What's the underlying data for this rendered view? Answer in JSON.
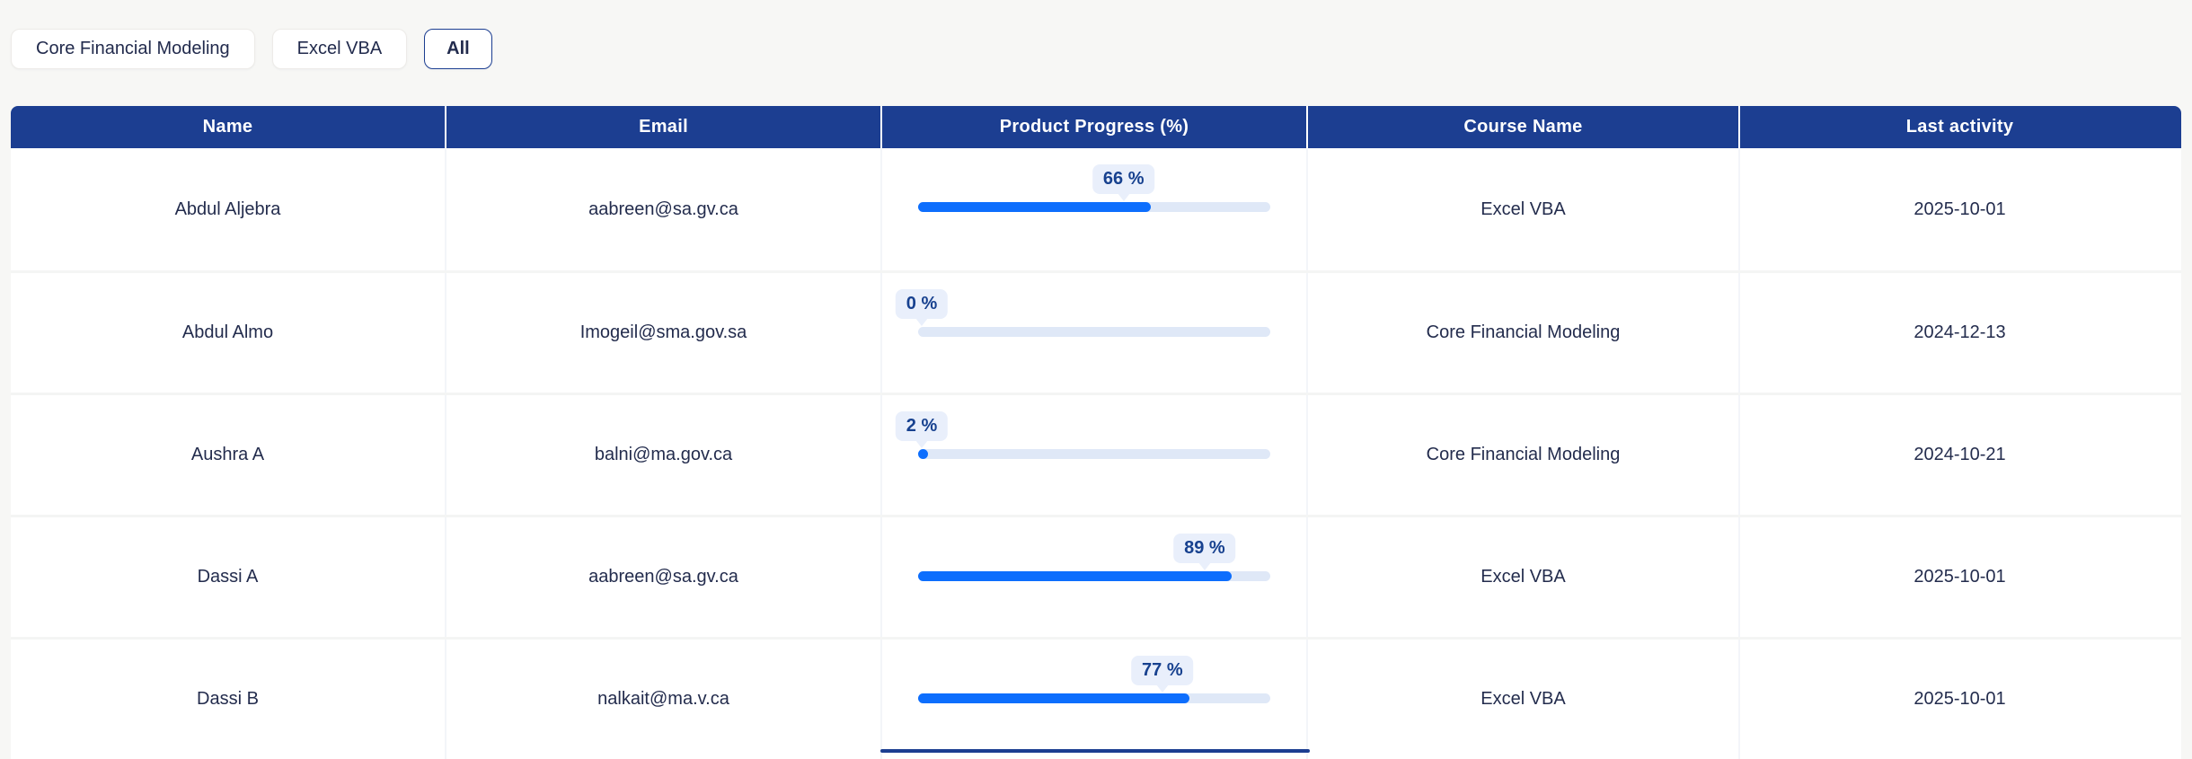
{
  "filters": {
    "buttons": [
      {
        "label": "Core Financial Modeling",
        "selected": false
      },
      {
        "label": "Excel VBA",
        "selected": false
      },
      {
        "label": "All",
        "selected": true
      }
    ]
  },
  "table": {
    "columns": [
      "Name",
      "Email",
      "Product Progress (%)",
      "Course Name",
      "Last activity"
    ],
    "rows": [
      {
        "name": "Abdul Aljebra",
        "email": "aabreen@sa.gv.ca",
        "progress_pct": 66,
        "progress_label": "66 %",
        "course": "Excel VBA",
        "last_activity": "2025-10-01"
      },
      {
        "name": "Abdul Almo",
        "email": "Imogeil@sma.gov.sa",
        "progress_pct": 0,
        "progress_label": "0 %",
        "course": "Core Financial Modeling",
        "last_activity": "2024-12-13"
      },
      {
        "name": "Aushra A",
        "email": "balni@ma.gov.ca",
        "progress_pct": 2,
        "progress_label": "2 %",
        "course": "Core Financial Modeling",
        "last_activity": "2024-10-21"
      },
      {
        "name": "Dassi A",
        "email": "aabreen@sa.gv.ca",
        "progress_pct": 89,
        "progress_label": "89 %",
        "course": "Excel VBA",
        "last_activity": "2025-10-01"
      },
      {
        "name": "Dassi B",
        "email": "nalkait@ma.v.ca",
        "progress_pct": 77,
        "progress_label": "77 %",
        "course": "Excel VBA",
        "last_activity": "2025-10-01"
      }
    ]
  },
  "colors": {
    "header_bg": "#1c3e91",
    "progress_fill": "#0d6efd",
    "progress_track": "#dfe8f7",
    "badge_bg": "#e9effb",
    "badge_text": "#17418f",
    "page_bg": "#f7f7f5",
    "selected_button_border": "#1c3e91",
    "body_text": "#232c4d"
  }
}
